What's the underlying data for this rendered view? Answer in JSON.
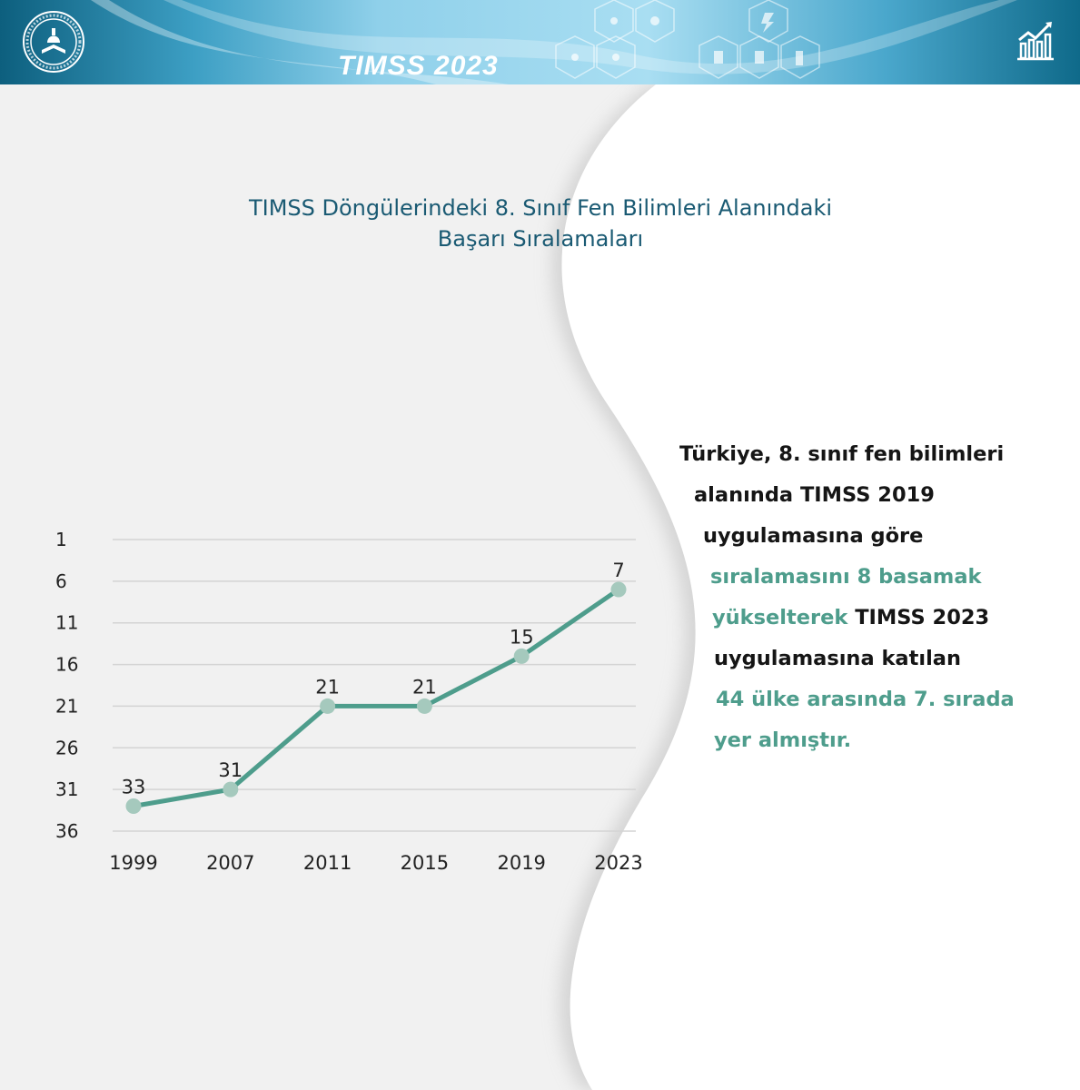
{
  "header": {
    "title": "TIMSS 2023"
  },
  "colors": {
    "title": "#1a5a73",
    "line": "#4e9d8c",
    "marker": "#a5c9bd",
    "highlight": "#4e9d8c",
    "grid": "#d4d4d4"
  },
  "chart_data": {
    "type": "line",
    "title_line1": "TIMSS Döngülerindeki 8. Sınıf Fen Bilimleri Alanındaki",
    "title_line2": "Başarı Sıralamaları",
    "categories": [
      "1999",
      "2007",
      "2011",
      "2015",
      "2019",
      "2023"
    ],
    "series": [
      {
        "values": [
          33,
          31,
          21,
          21,
          15,
          7
        ]
      }
    ],
    "y_ticks": [
      1,
      6,
      11,
      16,
      21,
      26,
      31,
      36
    ],
    "ylim": [
      1,
      36
    ],
    "y_inverted": true,
    "grid": true,
    "data_labels": true
  },
  "side_text": {
    "line1": "Türkiye, 8. sınıf fen bilimleri",
    "line2": "alanında TIMSS 2019",
    "line3": "uygulamasına göre",
    "line4": "sıralamasını 8 basamak",
    "line5a": "yükselterek",
    "line5b": " TIMSS 2023",
    "line6": "uygulamasına katılan",
    "line7": "44 ülke arasında 7. sırada",
    "line8": "yer almıştır."
  }
}
